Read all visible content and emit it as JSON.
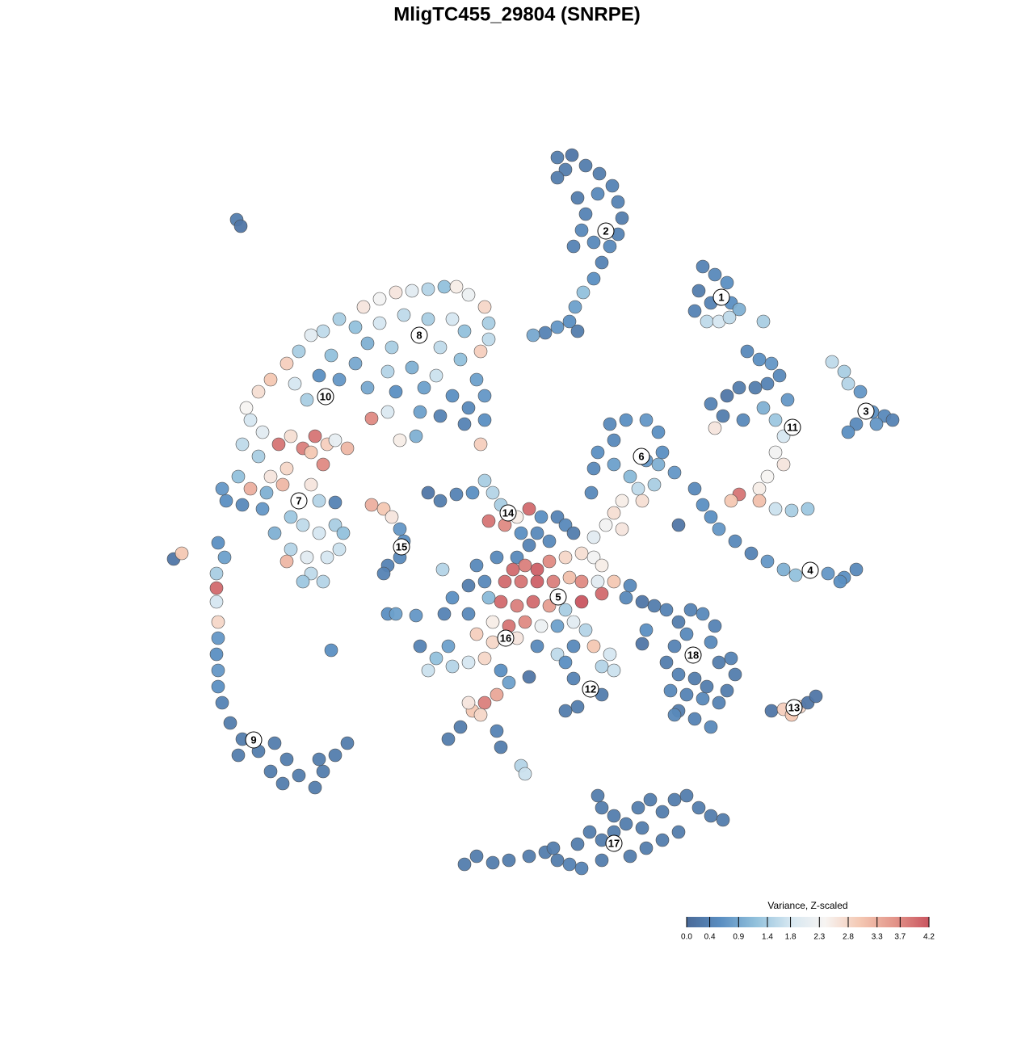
{
  "chart_data": {
    "type": "scatter",
    "title": "MligTC455_29804 (SNRPE)",
    "xlim": [
      -45,
      45
    ],
    "ylim": [
      -45,
      45
    ],
    "x": [
      5,
      6.8,
      8.5,
      10.2,
      11.8,
      12.5,
      13,
      12.5,
      11.5,
      10.5,
      9.5,
      8.2,
      7.2,
      6.5,
      5,
      3.5,
      2,
      7.5,
      8.5,
      8,
      7,
      6,
      5,
      10,
      9.5,
      7.5,
      23,
      24.5,
      26,
      22.5,
      24,
      26.5,
      22,
      27.5,
      23.5,
      25,
      26.3,
      30.5,
      39,
      40.5,
      41,
      42.5,
      44,
      45.5,
      46.5,
      42,
      41,
      44.5,
      28.5,
      30,
      31.5,
      32.5,
      31,
      29.5,
      27.5,
      26,
      24,
      25.5,
      28,
      30.5,
      32,
      33.5,
      33,
      32,
      33,
      31,
      30,
      27.5,
      26.5,
      30,
      32,
      34,
      36,
      24.5,
      22,
      23,
      24,
      25,
      27,
      29,
      31,
      33,
      34.5,
      36.5,
      38.5,
      40.5,
      42,
      40,
      20,
      11.5,
      13.5,
      16,
      17.5,
      12,
      10,
      9.5,
      12,
      14,
      16,
      18,
      19.5,
      17,
      15,
      13,
      12,
      11,
      9.5,
      15.5,
      13,
      9.2,
      17.5,
      -19,
      -17,
      -15,
      -13,
      -11,
      -9,
      -7.5,
      -6,
      -4,
      -3.5,
      -3.5,
      -4.5,
      -22,
      -24,
      -25.5,
      -27,
      -28.5,
      -30.5,
      -32,
      -33.5,
      -20,
      -17,
      -14,
      -11,
      -8,
      -6.5,
      -18.5,
      -15.5,
      -12,
      -9.5,
      -7,
      -23,
      -20,
      -16,
      -13,
      -10,
      -5,
      -24.5,
      -22,
      -18.5,
      -15,
      -11.5,
      -8,
      -4,
      -6,
      -6.5,
      -4,
      -9.5,
      -12,
      -16,
      -18,
      -14.5,
      -12.5,
      -4.5,
      -27.5,
      -26,
      -33,
      -31.5,
      -34,
      -32,
      -29.5,
      -28,
      -26.5,
      -25,
      -23.5,
      -25.5,
      -24,
      -28.5,
      -30.5,
      -33,
      -34.5,
      -31,
      -29,
      -25.5,
      -24.5,
      -34,
      -36,
      -31.5,
      -28,
      -30,
      -26.5,
      -24.5,
      -22.5,
      -21.5,
      -28,
      -26,
      -23.5,
      -22,
      -25.5,
      -24,
      -26.5,
      -28.5,
      -21,
      -22.5,
      -36.5,
      -22.5,
      -37,
      -36.2,
      -37.2,
      -37.2,
      -37.2,
      -37,
      -37,
      -37.2,
      -37,
      -37,
      -36.5,
      -35.5,
      -34,
      -32,
      -30,
      -28.5,
      -30.5,
      -29,
      -27,
      -25,
      -24,
      -22.5,
      -21,
      -24.5,
      -34.5,
      -42.5,
      -41.5,
      -34.7,
      -34.2,
      -23,
      -18,
      -16.5,
      -15.5,
      -14.5,
      -14,
      -14.5,
      -16,
      -16.5,
      -16,
      -15,
      -12.5,
      -11,
      -9.5,
      -7.5,
      -5.5,
      -4,
      -3,
      -2,
      -3.5,
      -1.5,
      0,
      1.5,
      3,
      5,
      6,
      7,
      2.5,
      1.5,
      0,
      -0.5,
      1,
      2.5,
      4,
      6,
      8,
      9.5,
      10.5,
      -1.5,
      0.5,
      2.5,
      4.5,
      6.5,
      8,
      10,
      12,
      14,
      -4,
      -6,
      -8,
      -9,
      -6,
      -3.5,
      -2,
      0,
      2,
      4,
      6,
      8,
      10.5,
      13.5,
      -3,
      -1,
      1,
      3,
      5,
      7,
      8.5,
      -5,
      -3,
      0,
      2.5,
      5,
      7,
      9.5,
      11.5,
      -12,
      -10,
      -8,
      -6,
      -11,
      -8.5,
      -4,
      -2,
      -1,
      -2.5,
      -4,
      -5.5,
      -4.5,
      -6,
      -7,
      -8.5,
      -2.5,
      -2,
      0.5,
      1,
      1.5,
      6,
      7,
      9,
      10.5,
      7.5,
      6,
      10.5,
      12,
      16,
      15.5,
      -9.2,
      -5,
      -2.5,
      0.5,
      4,
      17,
      18.5,
      20,
      21.5,
      23,
      24.5,
      21,
      19.5,
      22,
      18.5,
      20,
      22,
      19,
      21,
      23,
      20,
      22,
      24,
      19.5,
      25,
      26.5,
      27,
      26,
      25,
      23.5,
      24,
      15.5,
      31.5,
      33,
      34,
      35,
      36,
      37,
      -6.5,
      -5,
      -3,
      -1,
      1.5,
      3.5,
      5,
      6.5,
      7.5,
      9,
      10.5,
      10.5,
      12,
      13.5,
      15,
      16.5,
      18,
      19.5,
      21,
      22.5,
      24,
      25.5,
      20,
      18,
      16,
      14,
      10.5,
      12,
      15.5,
      10,
      4.5,
      8
    ],
    "y": [
      44.5,
      44.8,
      43.5,
      42.5,
      41,
      39,
      37,
      35,
      33.5,
      31.5,
      29.5,
      27.8,
      26,
      24.2,
      23.5,
      22.8,
      22.5,
      23,
      37.5,
      35.5,
      33.5,
      43,
      42,
      40,
      34,
      39.5,
      31,
      30,
      29,
      28,
      26.5,
      26.5,
      25.5,
      25.7,
      24.2,
      24.2,
      24.7,
      24.2,
      19.2,
      18,
      16.5,
      15.5,
      13,
      12.5,
      12,
      11.5,
      10.5,
      11.5,
      20.5,
      19.5,
      19,
      17.5,
      16.5,
      16,
      16,
      15,
      14,
      12.5,
      12,
      13.5,
      12,
      14.5,
      10,
      8,
      6.5,
      5,
      3.5,
      2.8,
      2,
      2,
      1,
      0.8,
      1,
      11,
      3.5,
      1.5,
      0,
      -1.5,
      -3,
      -4.5,
      -5.5,
      -6.5,
      -7.2,
      -6.5,
      -7,
      -7.5,
      -6.5,
      -8,
      -1,
      11.5,
      12,
      12,
      10.5,
      9.5,
      8,
      6,
      6.5,
      5,
      7,
      8,
      5.5,
      4,
      3.5,
      2,
      0.5,
      -1,
      -2.5,
      2,
      -1.5,
      3,
      6.5,
      26,
      27,
      27.8,
      28,
      28.2,
      28.5,
      28.5,
      27.5,
      26,
      24,
      22,
      20.5,
      24.5,
      23,
      22.5,
      20.5,
      19,
      17,
      15.5,
      13.5,
      23.5,
      24,
      25,
      24.5,
      24.5,
      23,
      21.5,
      21,
      22.5,
      21,
      19.5,
      20,
      19,
      18,
      18.5,
      17.5,
      17,
      17.5,
      17,
      16,
      15.5,
      16,
      15,
      15,
      13.5,
      11.5,
      12,
      12.5,
      13,
      13,
      12.2,
      9.5,
      10,
      9,
      16.5,
      14.5,
      12,
      10.5,
      9,
      7.5,
      9,
      10,
      8.5,
      10,
      9,
      8,
      6.5,
      6,
      5,
      3.5,
      5,
      3,
      4,
      4,
      2,
      1.5,
      2,
      1,
      0,
      -2,
      -1,
      -2,
      -1,
      -2,
      -4,
      -5,
      -5,
      -4,
      -7,
      -8,
      -8,
      -5.5,
      8.5,
      9.5,
      3.5,
      1.8,
      -3.2,
      -5,
      -7,
      -8.8,
      -10.5,
      -13,
      -15,
      -17,
      -19,
      -21,
      -23,
      -25.5,
      -27.5,
      -29,
      -28,
      -30,
      -31.5,
      -33,
      -32,
      -33.5,
      -31.5,
      -29.5,
      -28,
      -30,
      -29.5,
      -5.2,
      -4.5,
      36.8,
      36,
      -16.5,
      1.5,
      1,
      0,
      -1.5,
      -3,
      -5,
      -6,
      -7,
      -12,
      -12,
      -12.2,
      3,
      2,
      2.8,
      3,
      4.5,
      3,
      1.5,
      -0.5,
      -1,
      0,
      1,
      0,
      0,
      -1,
      -2,
      -2,
      -3.5,
      -5,
      -6.5,
      -6,
      -6.5,
      -5.5,
      -5,
      -4.5,
      -5,
      -6,
      -8,
      -8,
      -8,
      -8,
      -7.5,
      -8,
      -8,
      -8,
      -8.5,
      -8,
      -8.5,
      -10,
      -12,
      -12,
      -10,
      -10.5,
      -11,
      -10.5,
      -11,
      -11.5,
      -10.5,
      -9.5,
      -10,
      -13,
      -13.5,
      -13,
      -13.5,
      -13.5,
      -13,
      -14,
      -14.5,
      -15.5,
      -15,
      -16,
      -17,
      -16,
      -16,
      -17,
      -16,
      -17.5,
      -18.5,
      -18,
      -19,
      -16,
      -17.5,
      -19,
      -20.5,
      -22,
      -23,
      -24,
      -24.5,
      -23,
      -26,
      -27.5,
      -26.5,
      -28.5,
      -30.8,
      -31.8,
      -19.8,
      -18,
      -20,
      -21.3,
      -22,
      -23.5,
      -24,
      -18.5,
      -19,
      -14,
      -15.7,
      -6.5,
      -6,
      -5,
      -2,
      -3,
      -11,
      -11.5,
      -13,
      -11.5,
      -12,
      -13.5,
      -14.5,
      -16,
      -17,
      -18,
      -19.5,
      -20,
      -21.5,
      -22,
      -22.5,
      -24,
      -25,
      -26,
      -24.5,
      -18,
      -17.5,
      -19.5,
      -21.5,
      -23,
      -21,
      -15.5,
      -10.5,
      -24,
      -23.8,
      -24.5,
      -23.5,
      -23,
      -22.2,
      -43,
      -42,
      -42.8,
      -42.5,
      -42,
      -41.5,
      -42.5,
      -43,
      -40.5,
      -39,
      -40,
      -36,
      -37,
      -38,
      -36,
      -35,
      -36.5,
      -35,
      -34.5,
      -36,
      -37,
      -37.5,
      -39,
      -40,
      -41,
      -42,
      -42.5,
      -39,
      -38.5,
      -34.5,
      -41,
      -43.5
    ],
    "values": [
      0.3,
      0.2,
      0.3,
      0.3,
      0.4,
      0.4,
      0.3,
      0.4,
      0.5,
      0.4,
      0.6,
      1.2,
      0.8,
      0.6,
      0.7,
      0.4,
      0.9,
      0.3,
      0.4,
      0.5,
      0.4,
      0.3,
      0.3,
      0.5,
      0.5,
      0.3,
      0.4,
      0.5,
      0.6,
      0.3,
      0.4,
      0.6,
      0.4,
      1.0,
      1.6,
      1.8,
      1.6,
      1.4,
      1.6,
      1.4,
      1.5,
      0.7,
      0.6,
      0.5,
      0.4,
      0.5,
      0.6,
      0.7,
      0.5,
      0.6,
      0.7,
      0.5,
      0.4,
      0.3,
      0.3,
      0.2,
      0.4,
      0.3,
      0.5,
      1.0,
      1.3,
      0.7,
      1.8,
      2.3,
      2.6,
      2.4,
      2.5,
      3.9,
      3.0,
      3.1,
      1.7,
      1.4,
      1.3,
      2.6,
      0.5,
      0.6,
      0.6,
      0.7,
      0.5,
      0.4,
      0.7,
      1.0,
      1.2,
      1.4,
      0.7,
      0.6,
      0.5,
      0.6,
      0.2,
      0.5,
      0.6,
      0.7,
      0.6,
      0.5,
      0.6,
      0.5,
      0.8,
      1.1,
      0.7,
      0.6,
      0.7,
      1.4,
      1.6,
      2.5,
      2.7,
      2.3,
      2.0,
      2.7,
      2.6,
      0.5,
      1.0,
      2.6,
      2.3,
      2.6,
      2.0,
      1.5,
      1.2,
      2.5,
      2.2,
      2.8,
      1.4,
      1.6,
      2.9,
      1.4,
      1.6,
      2.0,
      1.4,
      2.9,
      3.0,
      2.7,
      2.4,
      1.2,
      1.8,
      1.6,
      1.4,
      1.8,
      1.2,
      1.0,
      1.4,
      1.3,
      1.6,
      1.2,
      1.2,
      0.9,
      1.5,
      1.0,
      1.7,
      0.8,
      0.6,
      0.7,
      0.9,
      0.6,
      0.8,
      0.6,
      0.7,
      0.5,
      0.4,
      0.6,
      0.4,
      0.8,
      1.9,
      3.7,
      2.5,
      1.0,
      2.9,
      1.8,
      1.4,
      1.8,
      2.0,
      1.6,
      1.4,
      3.9,
      2.7,
      3.8,
      3.9,
      2.9,
      3.0,
      3.7,
      2.8,
      2.6,
      3.3,
      1.2,
      1.0,
      3.2,
      2.6,
      1.5,
      0.5,
      0.6,
      0.7,
      1.3,
      1.0,
      1.6,
      1.8,
      1.4,
      1.2,
      1.5,
      2.0,
      1.8,
      1.7,
      1.6,
      1.5,
      1.3,
      3.2,
      3.2,
      2.1,
      0.7,
      0.4,
      0.6,
      0.8,
      1.4,
      4.0,
      1.8,
      2.8,
      0.7,
      0.6,
      0.7,
      0.6,
      0.4,
      0.3,
      0.3,
      0.3,
      0.3,
      0.3,
      0.3,
      0.3,
      0.3,
      0.3,
      0.3,
      0.3,
      0.3,
      0.3,
      0.3,
      0.2,
      3.0,
      0.3,
      0.2,
      0.6,
      3.3,
      3.0,
      2.6,
      0.7,
      0.6,
      0.5,
      0.4,
      0.4,
      0.6,
      0.8,
      0.7,
      0.2,
      0.3,
      0.4,
      0.6,
      1.4,
      1.5,
      1.4,
      3.9,
      3.7,
      2.5,
      4.0,
      0.6,
      0.4,
      0.5,
      0.3,
      0.5,
      0.4,
      0.5,
      4.0,
      3.8,
      4.1,
      3.7,
      2.8,
      2.7,
      2.3,
      2.5,
      4.0,
      3.9,
      4.1,
      3.8,
      3.1,
      3.7,
      2.0,
      3.0,
      0.5,
      0.5,
      0.3,
      0.6,
      0.4,
      0.5,
      1.1,
      4.0,
      3.8,
      4.0,
      3.5,
      1.4,
      4.2,
      4.0,
      0.5,
      2.5,
      3.9,
      3.7,
      2.2,
      0.8,
      2.0,
      1.5,
      2.9,
      2.8,
      2.6,
      0.5,
      1.6,
      0.5,
      3.0,
      1.8,
      0.4,
      1.2,
      1.5,
      1.8,
      1.7,
      0.8,
      2.8,
      0.6,
      0.8,
      3.4,
      3.8,
      3.0,
      2.8,
      2.6,
      0.3,
      0.3,
      0.4,
      0.3,
      1.5,
      1.7,
      0.2,
      0.6,
      0.4,
      0.5,
      0.3,
      0.3,
      0.3,
      1.5,
      1.7,
      0.6,
      0.2,
      1.5,
      0.5,
      0.5,
      0.6,
      0.5,
      0.3,
      0.4,
      0.3,
      0.4,
      0.5,
      0.4,
      0.5,
      0.4,
      0.6,
      0.3,
      0.4,
      0.3,
      0.5,
      0.4,
      0.5,
      0.3,
      0.4,
      0.5,
      0.5,
      0.3,
      0.4,
      0.3,
      0.3,
      0.4,
      0.3,
      0.5,
      0.2,
      0.2,
      2.9,
      3.0,
      2.8,
      0.2,
      0.2,
      0.3,
      0.3,
      0.3,
      0.3,
      0.3,
      0.3,
      0.3,
      0.4,
      0.3,
      0.3,
      0.3,
      0.3,
      0.3,
      0.3,
      0.3,
      0.3,
      0.3,
      0.3,
      0.3,
      0.3,
      0.3,
      0.3,
      0.3,
      0.3,
      0.3,
      0.3,
      0.3,
      0.3,
      0.3,
      0.3,
      0.3,
      0.4
    ],
    "cluster_labels": {
      "labels": [
        "1",
        "2",
        "3",
        "4",
        "5",
        "6",
        "7",
        "8",
        "9",
        "10",
        "11",
        "12",
        "13",
        "14",
        "15",
        "16",
        "17",
        "18"
      ],
      "x": [
        25.3,
        11,
        43.2,
        36.3,
        5.1,
        15.4,
        -27,
        -12.1,
        -32.6,
        -23.7,
        34.1,
        9.1,
        34.3,
        -1.1,
        -14.3,
        -1.4,
        12,
        21.8
      ],
      "y": [
        27.2,
        35.4,
        13.1,
        -6.6,
        -9.9,
        7.5,
        2,
        22.5,
        -27.6,
        14.9,
        11.1,
        -21.3,
        -23.6,
        0.5,
        -3.7,
        -15,
        -40.4,
        -17.1
      ]
    },
    "colorbar": {
      "title": "Variance, Z-scaled",
      "lim": [
        0,
        4.2
      ],
      "ticks": [
        {
          "value": 0,
          "label": "0.0"
        },
        0.4,
        0.9,
        1.4,
        1.8,
        2.3,
        2.8,
        3.3,
        3.7,
        4.2
      ],
      "colors": [
        "#4a6a98",
        "#5b8fc2",
        "#92c1dc",
        "#d6e7f1",
        "#f7f4f2",
        "#f4c8b3",
        "#e3958a",
        "#c95560"
      ]
    }
  }
}
